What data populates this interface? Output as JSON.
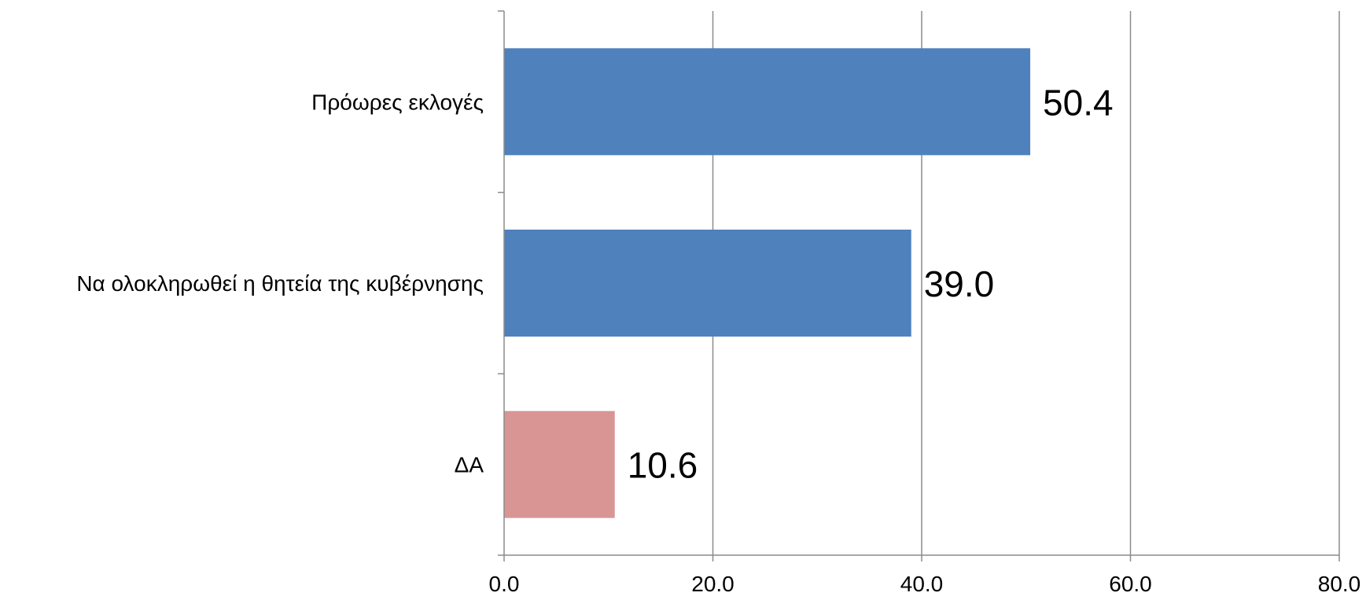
{
  "chart_data": {
    "type": "bar",
    "orientation": "horizontal",
    "categories": [
      "Πρόωρες εκλογές",
      "Να ολοκληρωθεί η θητεία της κυβέρνησης",
      "ΔΑ"
    ],
    "values": [
      50.4,
      39.0,
      10.6
    ],
    "data_labels": [
      "50.4",
      "39.0",
      "10.6"
    ],
    "bar_colors": [
      "#4f81bd",
      "#4f81bd",
      "#d99594"
    ],
    "xlim": [
      0,
      80
    ],
    "x_ticks": [
      0,
      20,
      40,
      60,
      80
    ],
    "x_tick_labels": [
      "0.0",
      "20.0",
      "40.0",
      "60.0",
      "80.0"
    ],
    "title": "",
    "xlabel": "",
    "ylabel": "",
    "grid": "vertical major gridlines",
    "legend": "none"
  }
}
